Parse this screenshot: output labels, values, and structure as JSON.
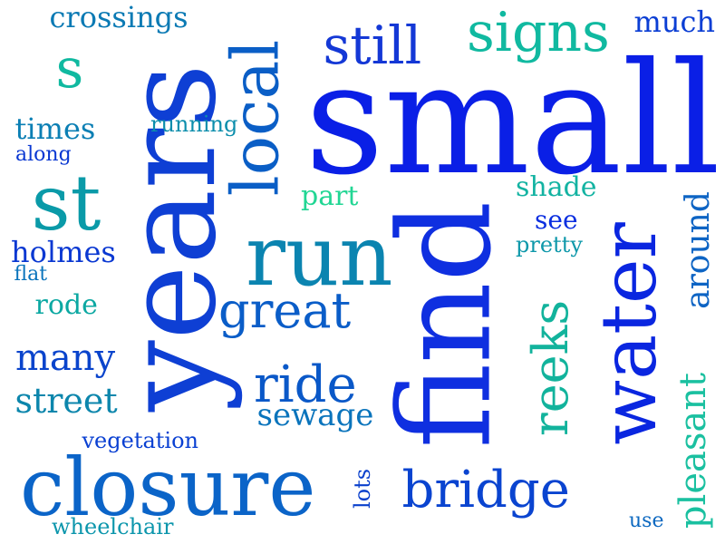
{
  "words": [
    {
      "text": "small",
      "color": "#0a1fe6",
      "rotated": false
    },
    {
      "text": "years",
      "color": "#0e3fd4",
      "rotated": true
    },
    {
      "text": "find",
      "color": "#0f2fe0",
      "rotated": true
    },
    {
      "text": "closure",
      "color": "#0b64c8",
      "rotated": false
    },
    {
      "text": "run",
      "color": "#0b84b0",
      "rotated": false
    },
    {
      "text": "water",
      "color": "#0a26e0",
      "rotated": true
    },
    {
      "text": "st",
      "color": "#0a9aa8",
      "rotated": false
    },
    {
      "text": "local",
      "color": "#0a5ec6",
      "rotated": true
    },
    {
      "text": "signs",
      "color": "#10b9a0",
      "rotated": false
    },
    {
      "text": "still",
      "color": "#1438d6",
      "rotated": false
    },
    {
      "text": "bridge",
      "color": "#0a44d0",
      "rotated": false
    },
    {
      "text": "great",
      "color": "#0a5dc8",
      "rotated": false
    },
    {
      "text": "ride",
      "color": "#0a58c8",
      "rotated": false
    },
    {
      "text": "reeks",
      "color": "#12b39c",
      "rotated": true
    },
    {
      "text": "s",
      "color": "#10b9a0",
      "rotated": false
    },
    {
      "text": "many",
      "color": "#0a44cc",
      "rotated": false
    },
    {
      "text": "street",
      "color": "#0c86ac",
      "rotated": false
    },
    {
      "text": "pleasant",
      "color": "#1ac0a0",
      "rotated": true
    },
    {
      "text": "around",
      "color": "#0d64c4",
      "rotated": true
    },
    {
      "text": "sewage",
      "color": "#0a74bc",
      "rotated": false
    },
    {
      "text": "holmes",
      "color": "#0a38d2",
      "rotated": false
    },
    {
      "text": "times",
      "color": "#0b7fb4",
      "rotated": false
    },
    {
      "text": "crossings",
      "color": "#0b7ab4",
      "rotated": false
    },
    {
      "text": "much",
      "color": "#0b3ed4",
      "rotated": false
    },
    {
      "text": "shade",
      "color": "#13b3a2",
      "rotated": false
    },
    {
      "text": "part",
      "color": "#22d694",
      "rotated": false
    },
    {
      "text": "see",
      "color": "#0a2ee0",
      "rotated": false
    },
    {
      "text": "rode",
      "color": "#0ca8a2",
      "rotated": false
    },
    {
      "text": "running",
      "color": "#0c8eac",
      "rotated": false
    },
    {
      "text": "vegetation",
      "color": "#0a40d2",
      "rotated": false
    },
    {
      "text": "wheelchair",
      "color": "#0c96ac",
      "rotated": false
    },
    {
      "text": "pretty",
      "color": "#0e98aa",
      "rotated": false
    },
    {
      "text": "along",
      "color": "#0a38d2",
      "rotated": false
    },
    {
      "text": "flat",
      "color": "#0a74bc",
      "rotated": false
    },
    {
      "text": "lots",
      "color": "#0a40cc",
      "rotated": true
    },
    {
      "text": "use",
      "color": "#0c68c0",
      "rotated": false
    }
  ]
}
